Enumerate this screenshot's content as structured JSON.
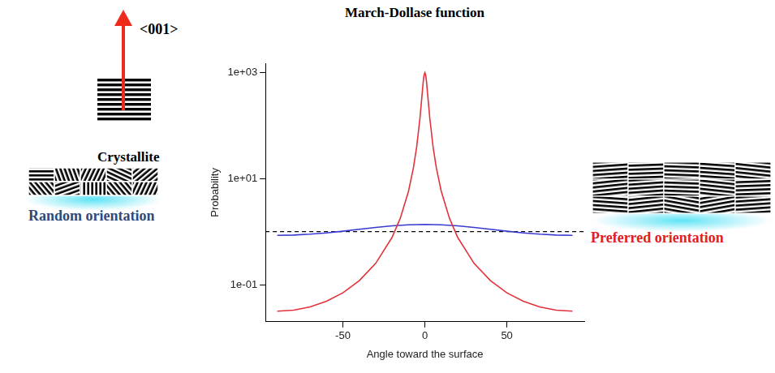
{
  "chart_data": {
    "type": "line",
    "title": "March-Dollase function",
    "x_label": "Angle toward the surface",
    "y_label": "Probability",
    "log": "y",
    "grid": false,
    "xlim": [
      -97.2,
      97.2
    ],
    "ylim": [
      0.02,
      1500
    ],
    "xticks": [
      -50,
      0,
      50
    ],
    "yticks": [
      {
        "value": 0.1,
        "label": "1e-01"
      },
      {
        "value": 10,
        "label": "1e+01"
      },
      {
        "value": 1000,
        "label": "1e+03"
      }
    ],
    "series": [
      {
        "color": "#e2323c",
        "line_style": "solid",
        "x": [
          -90,
          -80,
          -70,
          -60,
          -50,
          -40,
          -30,
          -20,
          -15,
          -10,
          -7,
          -5,
          -3,
          -2,
          -1,
          -0.5,
          0,
          0.5,
          1,
          2,
          3,
          5,
          7,
          10,
          15,
          20,
          30,
          40,
          50,
          60,
          70,
          80,
          90
        ],
        "values": [
          0.0316,
          0.0331,
          0.0381,
          0.0487,
          0.0703,
          0.119,
          0.252,
          0.78,
          1.79,
          5.76,
          15.9,
          39.7,
          138,
          303,
          671,
          896,
          1000,
          896,
          671,
          303,
          138,
          39.7,
          15.9,
          5.76,
          1.79,
          0.78,
          0.252,
          0.119,
          0.0703,
          0.0487,
          0.0381,
          0.0331,
          0.0316
        ]
      },
      {
        "color": "#3a3ad2",
        "line_style": "solid",
        "x": [
          -90,
          -80,
          -70,
          -60,
          -50,
          -40,
          -30,
          -20,
          -10,
          0,
          10,
          20,
          30,
          40,
          50,
          60,
          70,
          80,
          90
        ],
        "values": [
          0.854,
          0.864,
          0.896,
          0.949,
          1.02,
          1.107,
          1.2,
          1.287,
          1.349,
          1.372,
          1.349,
          1.287,
          1.2,
          1.107,
          1.02,
          0.949,
          0.896,
          0.864,
          0.854
        ]
      },
      {
        "color": "#000000",
        "line_style": "dashed",
        "x": [
          -97.2,
          97.2
        ],
        "values": [
          1,
          1
        ]
      }
    ]
  },
  "figure": {
    "arrow_label": "<001>",
    "crystallite_label": "Crystallite",
    "random_label": "Random orientation",
    "preferred_label": "Preferred orientation"
  }
}
